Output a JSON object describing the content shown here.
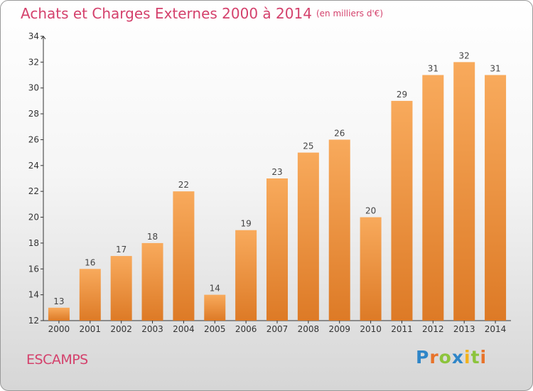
{
  "header": {
    "title": "Achats et Charges Externes 2000 à 2014",
    "unit_note": "(en milliers d'€)"
  },
  "footer": {
    "commune": "ESCAMPS",
    "logo_text": "Proxiti"
  },
  "chart_data": {
    "type": "bar",
    "title": "Achats et Charges Externes 2000 à 2014",
    "xlabel": "",
    "ylabel": "",
    "categories": [
      "2000",
      "2001",
      "2002",
      "2003",
      "2004",
      "2005",
      "2006",
      "2007",
      "2008",
      "2009",
      "2010",
      "2011",
      "2012",
      "2013",
      "2014"
    ],
    "values": [
      13,
      16,
      17,
      18,
      22,
      14,
      19,
      23,
      25,
      26,
      20,
      29,
      31,
      32,
      31
    ],
    "ylim": [
      12,
      34
    ],
    "yticks": [
      12,
      14,
      16,
      18,
      20,
      22,
      24,
      26,
      28,
      30,
      32,
      34
    ],
    "grid": false,
    "legend": "none",
    "colors": {
      "bar_light": "#f8aa5c",
      "bar_dark": "#dd7a26",
      "axis": "#333333",
      "title": "#d4416c"
    }
  }
}
